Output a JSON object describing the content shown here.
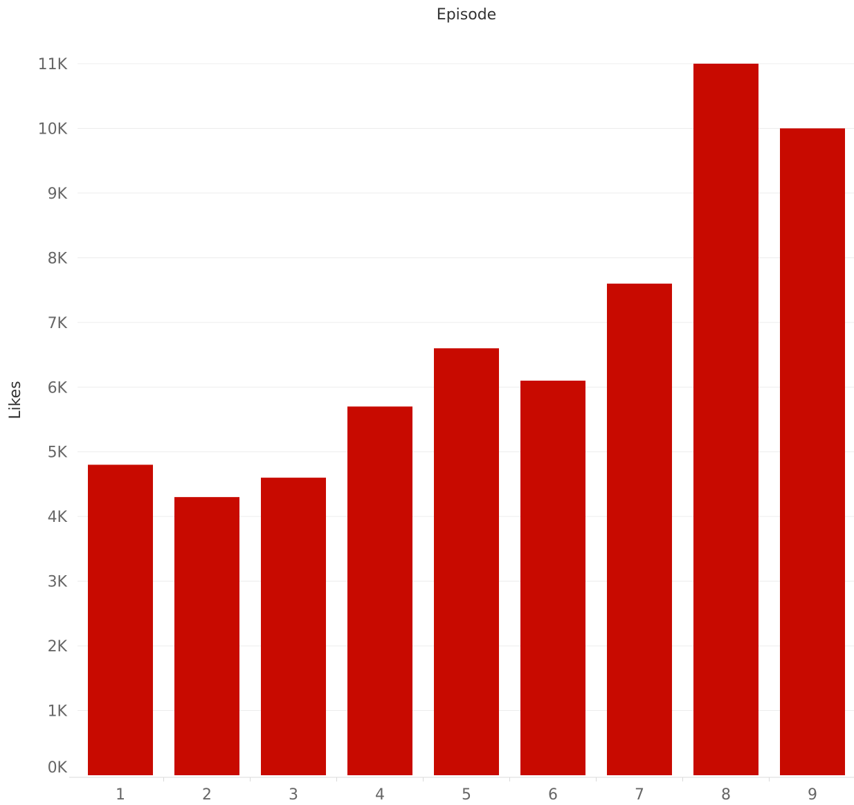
{
  "chart_data": {
    "type": "bar",
    "title": "",
    "xlabel": "Episode",
    "ylabel": "Likes",
    "categories": [
      "1",
      "2",
      "3",
      "4",
      "5",
      "6",
      "7",
      "8",
      "9"
    ],
    "series": [
      {
        "values": [
          4800,
          4300,
          4600,
          5700,
          6600,
          6100,
          7600,
          11000,
          10000
        ]
      }
    ],
    "ylim": [
      0,
      11000
    ],
    "yticks": [
      0,
      1000,
      2000,
      3000,
      4000,
      5000,
      6000,
      7000,
      8000,
      9000,
      10000,
      11000
    ],
    "ytick_labels": [
      "0K",
      "1K",
      "2K",
      "3K",
      "4K",
      "5K",
      "6K",
      "7K",
      "8K",
      "9K",
      "10K",
      "11K"
    ],
    "grid": true,
    "bar_color": "#c80a00",
    "xlabel_position": "top"
  }
}
